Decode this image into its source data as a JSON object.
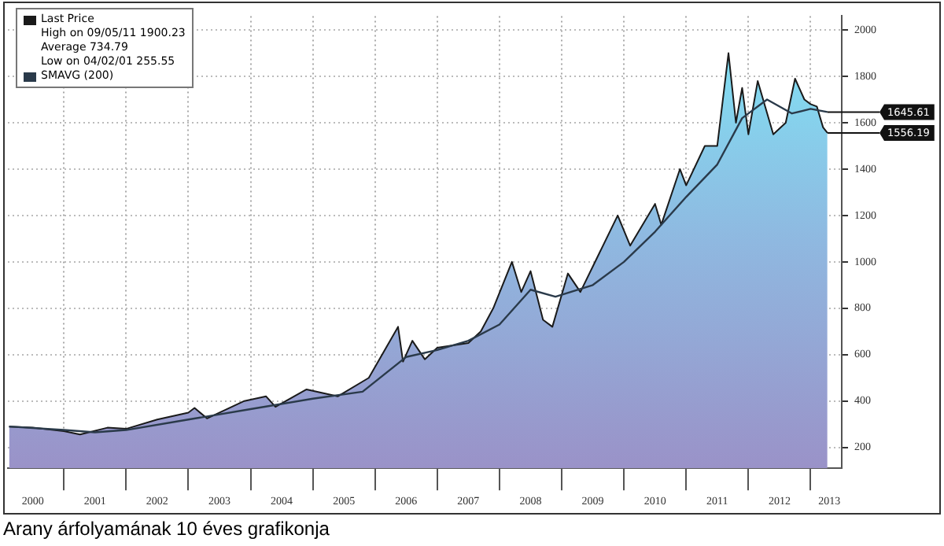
{
  "chart_data": {
    "type": "area",
    "title": "Arany árfolyamának 10 éves grafikonja",
    "x": [
      2000.12,
      2000.5,
      2001.0,
      2001.26,
      2001.7,
      2002.0,
      2002.5,
      2003.0,
      2003.1,
      2003.3,
      2003.9,
      2004.25,
      2004.4,
      2004.9,
      2005.4,
      2005.9,
      2006.37,
      2006.45,
      2006.6,
      2006.8,
      2007.0,
      2007.5,
      2007.7,
      2007.9,
      2008.2,
      2008.35,
      2008.5,
      2008.7,
      2008.85,
      2009.1,
      2009.3,
      2009.9,
      2010.1,
      2010.5,
      2010.6,
      2010.9,
      2011.0,
      2011.3,
      2011.5,
      2011.68,
      2011.8,
      2011.9,
      2012.0,
      2012.15,
      2012.4,
      2012.6,
      2012.75,
      2012.9,
      2013.0,
      2013.1,
      2013.2,
      2013.27
    ],
    "series": [
      {
        "name": "Last Price",
        "color": "#1a1a1a",
        "values": [
          290,
          285,
          270,
          256,
          285,
          280,
          320,
          350,
          370,
          325,
          400,
          420,
          375,
          450,
          420,
          500,
          720,
          570,
          660,
          580,
          630,
          650,
          700,
          800,
          1000,
          870,
          960,
          750,
          720,
          950,
          870,
          1200,
          1070,
          1250,
          1160,
          1400,
          1330,
          1500,
          1500,
          1900,
          1600,
          1750,
          1550,
          1780,
          1550,
          1600,
          1790,
          1700,
          1680,
          1670,
          1580,
          1556
        ]
      },
      {
        "name": "SMAVG (200)",
        "type": "line",
        "color": "#2a3a4a",
        "x": [
          2000.12,
          2001.0,
          2001.5,
          2002.0,
          2003.0,
          2004.0,
          2005.0,
          2005.8,
          2006.5,
          2007.0,
          2007.5,
          2008.0,
          2008.5,
          2008.9,
          2009.5,
          2010.0,
          2010.5,
          2011.0,
          2011.5,
          2011.9,
          2012.3,
          2012.7,
          2013.0,
          2013.27
        ],
        "values": [
          290,
          275,
          265,
          275,
          320,
          365,
          410,
          440,
          590,
          620,
          660,
          730,
          880,
          850,
          900,
          1000,
          1130,
          1280,
          1420,
          1620,
          1700,
          1640,
          1660,
          1646
        ]
      }
    ],
    "annotations": [
      "High on 09/05/11 1900.23",
      "Average 734.79",
      "Low on 04/02/01 255.55",
      {
        "text": "1645.61",
        "x": 2013.27,
        "y": 1645.61
      },
      {
        "text": "1556.19",
        "x": 2013.27,
        "y": 1556.19
      }
    ],
    "xlim": [
      2000.1,
      2013.5
    ],
    "xticks": [
      {
        "value": 2000.5,
        "label": "2000"
      },
      {
        "value": 2001,
        "label": null
      },
      {
        "value": 2001.5,
        "label": "2001"
      },
      {
        "value": 2002,
        "label": null
      },
      {
        "value": 2002.5,
        "label": "2002"
      },
      {
        "value": 2003,
        "label": null
      },
      {
        "value": 2003.5,
        "label": "2003"
      },
      {
        "value": 2004,
        "label": null
      },
      {
        "value": 2004.5,
        "label": "2004"
      },
      {
        "value": 2005,
        "label": null
      },
      {
        "value": 2005.5,
        "label": "2005"
      },
      {
        "value": 2006,
        "label": null
      },
      {
        "value": 2006.5,
        "label": "2006"
      },
      {
        "value": 2007,
        "label": null
      },
      {
        "value": 2007.5,
        "label": "2007"
      },
      {
        "value": 2008,
        "label": null
      },
      {
        "value": 2008.5,
        "label": "2008"
      },
      {
        "value": 2009,
        "label": null
      },
      {
        "value": 2009.5,
        "label": "2009"
      },
      {
        "value": 2010,
        "label": null
      },
      {
        "value": 2010.5,
        "label": "2010"
      },
      {
        "value": 2011,
        "label": null
      },
      {
        "value": 2011.5,
        "label": "2011"
      },
      {
        "value": 2012,
        "label": null
      },
      {
        "value": 2012.5,
        "label": "2012"
      },
      {
        "value": 2013,
        "label": null
      },
      {
        "value": 2013.3,
        "label": "2013"
      }
    ],
    "ylim": [
      110,
      2060
    ],
    "yticks": [
      200,
      400,
      600,
      800,
      1000,
      1200,
      1400,
      1600,
      1800,
      2000
    ],
    "grid": true,
    "legend": "top left",
    "marker": "none",
    "line_style": "solid"
  }
}
